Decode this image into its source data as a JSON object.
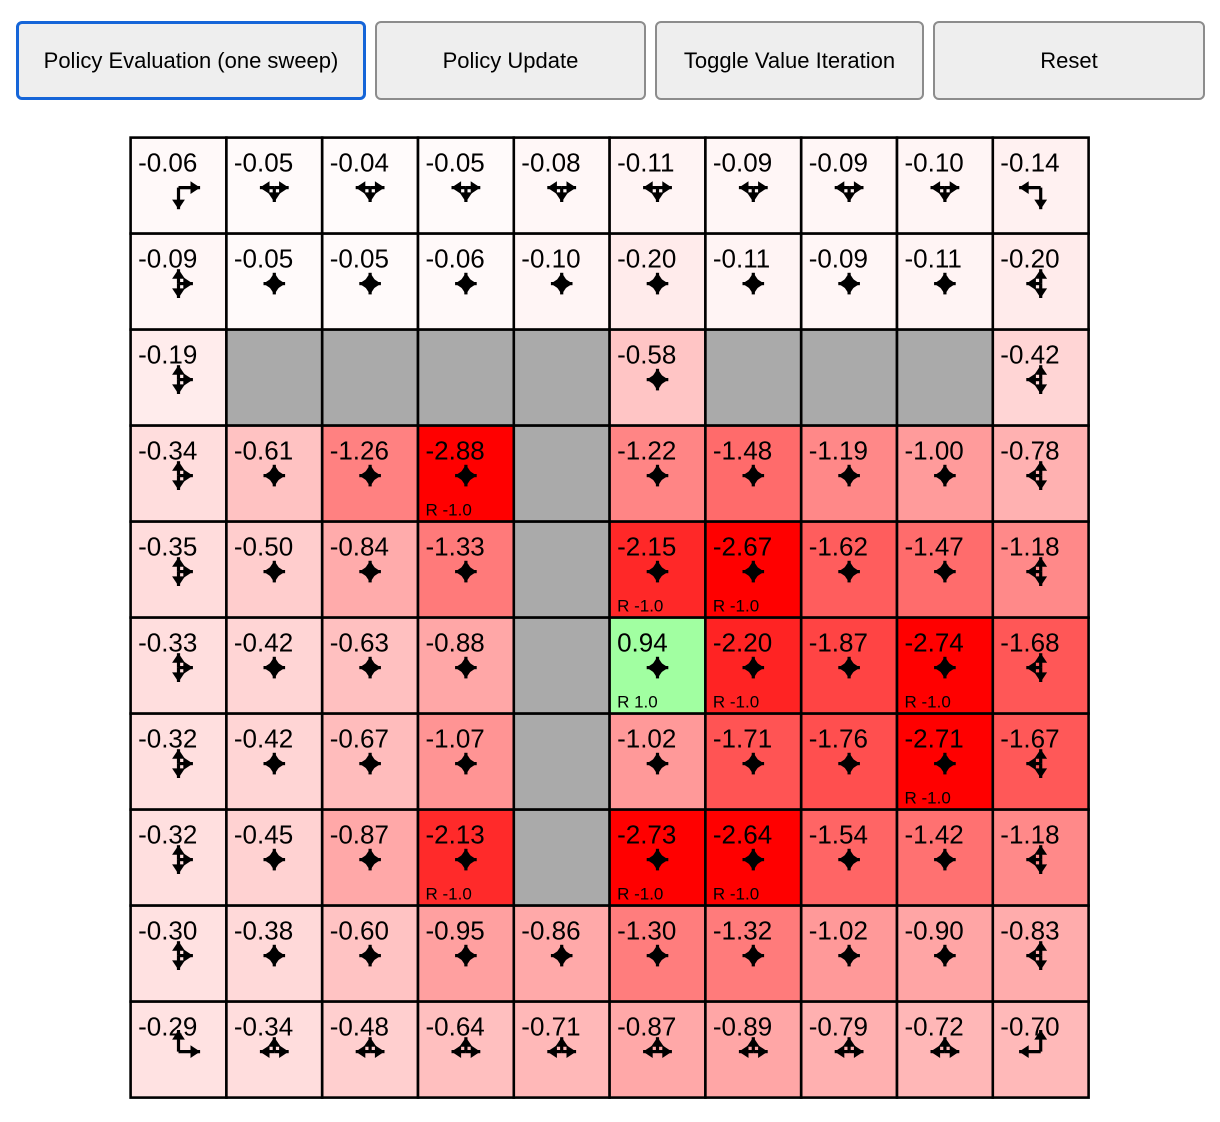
{
  "toolbar": {
    "buttons": [
      {
        "id": "policy-evaluation",
        "label": "Policy Evaluation (one sweep)",
        "focused": true
      },
      {
        "id": "policy-update",
        "label": "Policy Update",
        "focused": false
      },
      {
        "id": "toggle-value-iteration",
        "label": "Toggle Value Iteration",
        "focused": false
      },
      {
        "id": "reset",
        "label": "Reset",
        "focused": false
      }
    ]
  },
  "grid": {
    "rows": 10,
    "cols": 10,
    "cells": [
      [
        {
          "value": "-0.06",
          "dirs": "dr"
        },
        {
          "value": "-0.05",
          "dirs": "dlr"
        },
        {
          "value": "-0.04",
          "dirs": "dlr"
        },
        {
          "value": "-0.05",
          "dirs": "dlr"
        },
        {
          "value": "-0.08",
          "dirs": "dlr"
        },
        {
          "value": "-0.11",
          "dirs": "dlr"
        },
        {
          "value": "-0.09",
          "dirs": "dlr"
        },
        {
          "value": "-0.09",
          "dirs": "dlr"
        },
        {
          "value": "-0.10",
          "dirs": "dlr"
        },
        {
          "value": "-0.14",
          "dirs": "dl"
        }
      ],
      [
        {
          "value": "-0.09",
          "dirs": "udr"
        },
        {
          "value": "-0.05",
          "dirs": "udlr"
        },
        {
          "value": "-0.05",
          "dirs": "udlr"
        },
        {
          "value": "-0.06",
          "dirs": "udlr"
        },
        {
          "value": "-0.10",
          "dirs": "udlr"
        },
        {
          "value": "-0.20",
          "dirs": "udlr"
        },
        {
          "value": "-0.11",
          "dirs": "udlr"
        },
        {
          "value": "-0.09",
          "dirs": "udlr"
        },
        {
          "value": "-0.11",
          "dirs": "udlr"
        },
        {
          "value": "-0.20",
          "dirs": "udl"
        }
      ],
      [
        {
          "value": "-0.19",
          "dirs": "udr"
        },
        {
          "wall": true
        },
        {
          "wall": true
        },
        {
          "wall": true
        },
        {
          "wall": true
        },
        {
          "value": "-0.58",
          "dirs": "udlr"
        },
        {
          "wall": true
        },
        {
          "wall": true
        },
        {
          "wall": true
        },
        {
          "value": "-0.42",
          "dirs": "udl"
        }
      ],
      [
        {
          "value": "-0.34",
          "dirs": "udr"
        },
        {
          "value": "-0.61",
          "dirs": "udlr"
        },
        {
          "value": "-1.26",
          "dirs": "udlr"
        },
        {
          "value": "-2.88",
          "dirs": "udlr",
          "reward": "R -1.0"
        },
        {
          "wall": true
        },
        {
          "value": "-1.22",
          "dirs": "udlr"
        },
        {
          "value": "-1.48",
          "dirs": "udlr"
        },
        {
          "value": "-1.19",
          "dirs": "udlr"
        },
        {
          "value": "-1.00",
          "dirs": "udlr"
        },
        {
          "value": "-0.78",
          "dirs": "udl"
        }
      ],
      [
        {
          "value": "-0.35",
          "dirs": "udr"
        },
        {
          "value": "-0.50",
          "dirs": "udlr"
        },
        {
          "value": "-0.84",
          "dirs": "udlr"
        },
        {
          "value": "-1.33",
          "dirs": "udlr"
        },
        {
          "wall": true
        },
        {
          "value": "-2.15",
          "dirs": "udlr",
          "reward": "R -1.0"
        },
        {
          "value": "-2.67",
          "dirs": "udlr",
          "reward": "R -1.0"
        },
        {
          "value": "-1.62",
          "dirs": "udlr"
        },
        {
          "value": "-1.47",
          "dirs": "udlr"
        },
        {
          "value": "-1.18",
          "dirs": "udl"
        }
      ],
      [
        {
          "value": "-0.33",
          "dirs": "udr"
        },
        {
          "value": "-0.42",
          "dirs": "udlr"
        },
        {
          "value": "-0.63",
          "dirs": "udlr"
        },
        {
          "value": "-0.88",
          "dirs": "udlr"
        },
        {
          "wall": true
        },
        {
          "value": "0.94",
          "dirs": "udlr",
          "reward": "R 1.0"
        },
        {
          "value": "-2.20",
          "dirs": "udlr",
          "reward": "R -1.0"
        },
        {
          "value": "-1.87",
          "dirs": "udlr"
        },
        {
          "value": "-2.74",
          "dirs": "udlr",
          "reward": "R -1.0"
        },
        {
          "value": "-1.68",
          "dirs": "udl"
        }
      ],
      [
        {
          "value": "-0.32",
          "dirs": "udr"
        },
        {
          "value": "-0.42",
          "dirs": "udlr"
        },
        {
          "value": "-0.67",
          "dirs": "udlr"
        },
        {
          "value": "-1.07",
          "dirs": "udlr"
        },
        {
          "wall": true
        },
        {
          "value": "-1.02",
          "dirs": "udlr"
        },
        {
          "value": "-1.71",
          "dirs": "udlr"
        },
        {
          "value": "-1.76",
          "dirs": "udlr"
        },
        {
          "value": "-2.71",
          "dirs": "udlr",
          "reward": "R -1.0"
        },
        {
          "value": "-1.67",
          "dirs": "udl"
        }
      ],
      [
        {
          "value": "-0.32",
          "dirs": "udr"
        },
        {
          "value": "-0.45",
          "dirs": "udlr"
        },
        {
          "value": "-0.87",
          "dirs": "udlr"
        },
        {
          "value": "-2.13",
          "dirs": "udlr",
          "reward": "R -1.0"
        },
        {
          "wall": true
        },
        {
          "value": "-2.73",
          "dirs": "udlr",
          "reward": "R -1.0"
        },
        {
          "value": "-2.64",
          "dirs": "udlr",
          "reward": "R -1.0"
        },
        {
          "value": "-1.54",
          "dirs": "udlr"
        },
        {
          "value": "-1.42",
          "dirs": "udlr"
        },
        {
          "value": "-1.18",
          "dirs": "udl"
        }
      ],
      [
        {
          "value": "-0.30",
          "dirs": "udr"
        },
        {
          "value": "-0.38",
          "dirs": "udlr"
        },
        {
          "value": "-0.60",
          "dirs": "udlr"
        },
        {
          "value": "-0.95",
          "dirs": "udlr"
        },
        {
          "value": "-0.86",
          "dirs": "udlr"
        },
        {
          "value": "-1.30",
          "dirs": "udlr"
        },
        {
          "value": "-1.32",
          "dirs": "udlr"
        },
        {
          "value": "-1.02",
          "dirs": "udlr"
        },
        {
          "value": "-0.90",
          "dirs": "udlr"
        },
        {
          "value": "-0.83",
          "dirs": "udl"
        }
      ],
      [
        {
          "value": "-0.29",
          "dirs": "ur"
        },
        {
          "value": "-0.34",
          "dirs": "ulr"
        },
        {
          "value": "-0.48",
          "dirs": "ulr"
        },
        {
          "value": "-0.64",
          "dirs": "ulr"
        },
        {
          "value": "-0.71",
          "dirs": "ulr"
        },
        {
          "value": "-0.87",
          "dirs": "ulr"
        },
        {
          "value": "-0.89",
          "dirs": "ulr"
        },
        {
          "value": "-0.79",
          "dirs": "ulr"
        },
        {
          "value": "-0.72",
          "dirs": "ulr"
        },
        {
          "value": "-0.70",
          "dirs": "ul"
        }
      ]
    ]
  },
  "colors": {
    "page_bg": "#ffffff",
    "wall": "#aaaaaa",
    "grid_line": "#000000",
    "cell_text": "#000000",
    "positive_cell": "#a1ffa1",
    "max_negative_cell": "#ff0000",
    "button_bg": "#eeeeee",
    "button_border": "#8c8c8c",
    "focus_ring": "#1565d8",
    "value_color_scale": "rgb(255, 255+v*100, 255+v*100) for v<0; rgb(255-v*100, 255, 255-v*100) for v>0"
  }
}
